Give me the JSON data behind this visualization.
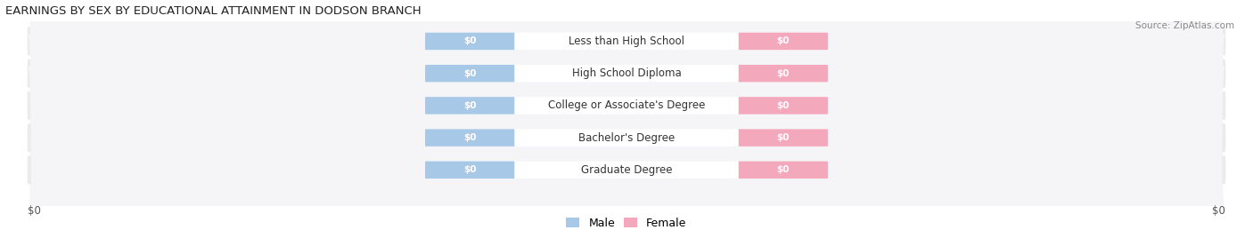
{
  "title": "EARNINGS BY SEX BY EDUCATIONAL ATTAINMENT IN DODSON BRANCH",
  "source": "Source: ZipAtlas.com",
  "categories": [
    "Less than High School",
    "High School Diploma",
    "College or Associate's Degree",
    "Bachelor's Degree",
    "Graduate Degree"
  ],
  "male_values": [
    0,
    0,
    0,
    0,
    0
  ],
  "female_values": [
    0,
    0,
    0,
    0,
    0
  ],
  "male_color": "#A8C8E8",
  "female_color": "#F4A8BC",
  "label_text": "$0",
  "background_color": "#FFFFFF",
  "row_bg_color": "#EBEBED",
  "axis_label": "$0",
  "legend_male": "Male",
  "legend_female": "Female",
  "title_fontsize": 9.5,
  "source_fontsize": 7.5,
  "cat_fontsize": 8.5,
  "bar_label_fontsize": 7.5,
  "axis_label_fontsize": 8.5,
  "legend_fontsize": 9
}
